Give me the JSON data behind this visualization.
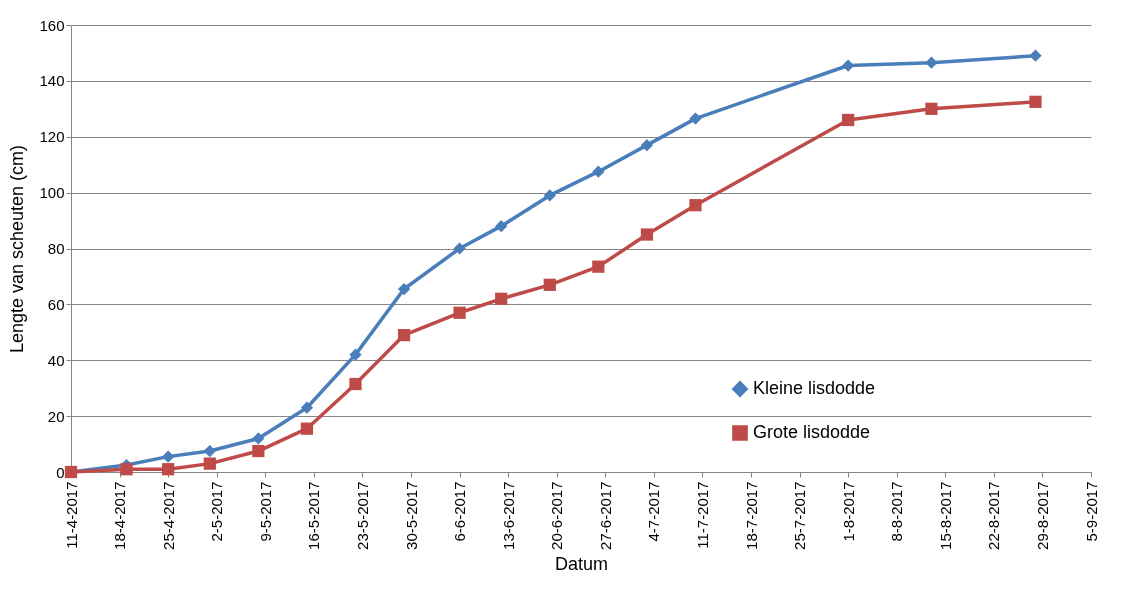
{
  "chart_data": {
    "type": "line",
    "xlabel": "Datum",
    "ylabel": "Lengte van scheuten (cm)",
    "x": [
      "2017-04-11",
      "2017-04-19",
      "2017-04-25",
      "2017-05-01",
      "2017-05-08",
      "2017-05-15",
      "2017-05-22",
      "2017-05-29",
      "2017-06-06",
      "2017-06-12",
      "2017-06-19",
      "2017-06-26",
      "2017-07-03",
      "2017-07-10",
      "2017-08-01",
      "2017-08-13",
      "2017-08-28"
    ],
    "series": [
      {
        "name": "Kleine lisdodde",
        "color": "#4a7ebb",
        "marker": "diamond",
        "values": [
          0,
          2.5,
          5.5,
          7.5,
          12,
          23,
          42,
          65.5,
          80,
          88,
          99,
          107.5,
          117,
          126.5,
          145.5,
          146.5,
          149
        ]
      },
      {
        "name": "Grote lisdodde",
        "color": "#be4b48",
        "marker": "square",
        "values": [
          0,
          1,
          1,
          3,
          7.5,
          15.5,
          31.5,
          49,
          57,
          62,
          67,
          73.5,
          85,
          95.5,
          126,
          130,
          132.5
        ]
      }
    ],
    "xlim": [
      "2017-04-11",
      "2017-09-05"
    ],
    "xticks": [
      {
        "value": "2017-04-11",
        "label": "11-4-2017"
      },
      {
        "value": "2017-04-18",
        "label": "18-4-2017"
      },
      {
        "value": "2017-04-25",
        "label": "25-4-2017"
      },
      {
        "value": "2017-05-02",
        "label": "2-5-2017"
      },
      {
        "value": "2017-05-09",
        "label": "9-5-2017"
      },
      {
        "value": "2017-05-16",
        "label": "16-5-2017"
      },
      {
        "value": "2017-05-23",
        "label": "23-5-2017"
      },
      {
        "value": "2017-05-30",
        "label": "30-5-2017"
      },
      {
        "value": "2017-06-06",
        "label": "6-6-2017"
      },
      {
        "value": "2017-06-13",
        "label": "13-6-2017"
      },
      {
        "value": "2017-06-20",
        "label": "20-6-2017"
      },
      {
        "value": "2017-06-27",
        "label": "27-6-2017"
      },
      {
        "value": "2017-07-04",
        "label": "4-7-2017"
      },
      {
        "value": "2017-07-11",
        "label": "11-7-2017"
      },
      {
        "value": "2017-07-18",
        "label": "18-7-2017"
      },
      {
        "value": "2017-07-25",
        "label": "25-7-2017"
      },
      {
        "value": "2017-08-01",
        "label": "1-8-2017"
      },
      {
        "value": "2017-08-08",
        "label": "8-8-2017"
      },
      {
        "value": "2017-08-15",
        "label": "15-8-2017"
      },
      {
        "value": "2017-08-22",
        "label": "22-8-2017"
      },
      {
        "value": "2017-08-29",
        "label": "29-8-2017"
      },
      {
        "value": "2017-09-05",
        "label": "5-9-2017"
      }
    ],
    "ylim": [
      0,
      160
    ],
    "yticks": [
      0,
      20,
      40,
      60,
      80,
      100,
      120,
      140,
      160
    ],
    "grid": "y",
    "legend": "right",
    "line_style": "solid"
  }
}
